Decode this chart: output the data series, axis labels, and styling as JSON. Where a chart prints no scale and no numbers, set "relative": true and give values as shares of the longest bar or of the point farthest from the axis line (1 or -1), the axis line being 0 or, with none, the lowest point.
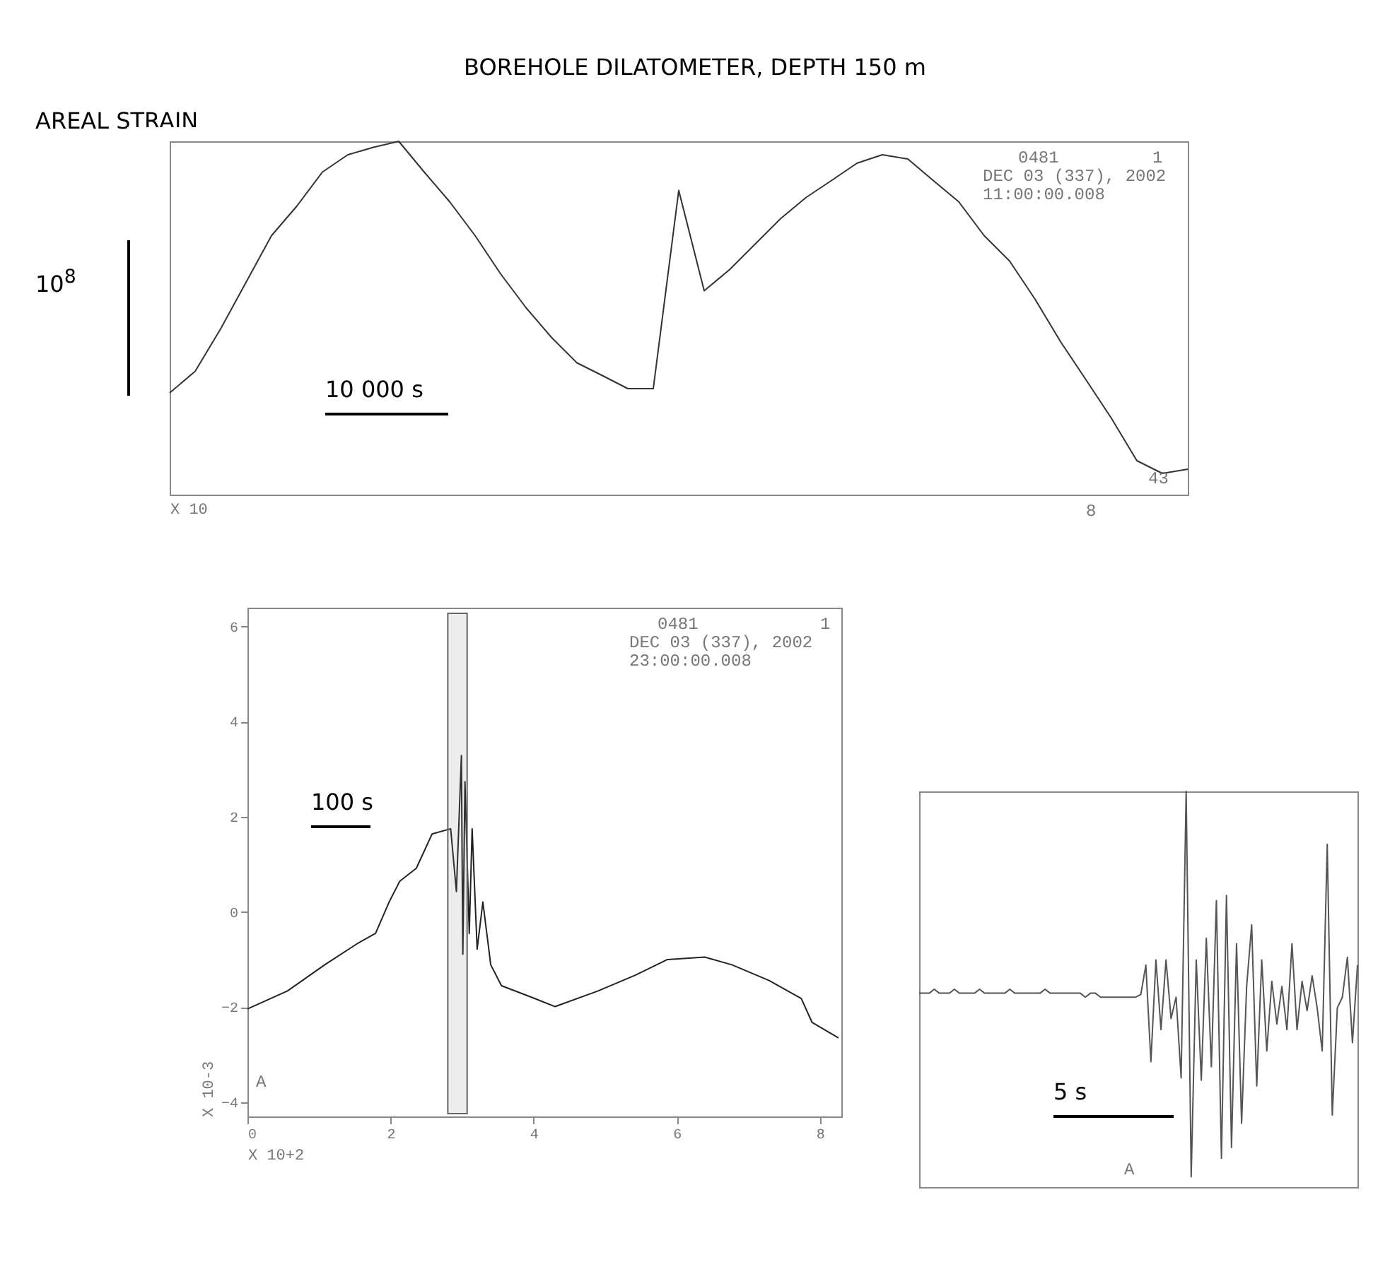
{
  "chart_data": [
    {
      "type": "line",
      "title": "BOREHOLE DILATOMETER, DEPTH 150 m",
      "subtitle": "AREAL STRAIN",
      "xlabel": "X 10",
      "relative": true,
      "categories": [
        null,
        null,
        null,
        null,
        null,
        null,
        null,
        null,
        null,
        null,
        null,
        null,
        null,
        null,
        null,
        null,
        null,
        null,
        null,
        null,
        null,
        null,
        null,
        null,
        null,
        null,
        null,
        null,
        null,
        null,
        null,
        null,
        null,
        null,
        null,
        null,
        null,
        null,
        null,
        null,
        null
      ],
      "series": [
        {
          "color": "#333333",
          "values": [
            0.288,
            0.349,
            0.469,
            0.601,
            0.733,
            0.817,
            0.913,
            0.962,
            0.983,
            1,
            0.913,
            0.829,
            0.733,
            0.625,
            0.529,
            0.445,
            0.373,
            0.337,
            0.3,
            0.3,
            0.861,
            0.577,
            0.637,
            0.709,
            0.781,
            0.841,
            0.889,
            0.938,
            0.962,
            0.95,
            0.889,
            0.829,
            0.733,
            0.661,
            0.553,
            0.433,
            0.325,
            0.216,
            0.096,
            0.06,
            0.072
          ]
        }
      ],
      "annotations": [
        "0481",
        "1",
        "DEC 03 (337), 2002",
        "11:00:00.008",
        "10 000 s",
        "10$^{8}$",
        "43",
        "8"
      ]
    },
    {
      "type": "line",
      "xlabel": "X 10+2",
      "ylabel": "X 10-3",
      "x": [
        0,
        0.56,
        1.08,
        1.53,
        1.79,
        1.98,
        2.13,
        2.36,
        2.58,
        2.84,
        2.92,
        2.99,
        3.01,
        3.04,
        3.1,
        3.14,
        3.21,
        3.29,
        3.4,
        3.55,
        3.93,
        4.3,
        4.9,
        5.42,
        5.87,
        6.39,
        6.77,
        7.29,
        7.74,
        7.89,
        8.26
      ],
      "series": [
        {
          "color": "#222222",
          "values": [
            -2.04,
            -1.66,
            -1.11,
            -0.67,
            -0.45,
            0.21,
            0.65,
            0.92,
            1.64,
            1.75,
            0.43,
            3.29,
            -0.89,
            2.74,
            -0.45,
            1.75,
            -0.78,
            0.21,
            -1.11,
            -1.55,
            -1.77,
            -1.99,
            -1.66,
            -1.33,
            -1,
            -0.95,
            -1.11,
            -1.44,
            -1.82,
            -2.32,
            -2.65
          ]
        }
      ],
      "xlim": [
        0,
        8.3
      ],
      "ylim": [
        -4.3,
        6.4
      ],
      "xticks": [
        0,
        2,
        4,
        6,
        8
      ],
      "yticks": [
        -4,
        -2,
        0,
        2,
        4,
        6
      ],
      "bands": [
        {
          "axis": "x",
          "from": 2.8,
          "to": 3.07
        }
      ],
      "annotations": [
        "0481",
        "1",
        "DEC 03 (337), 2002",
        "23:00:00.008",
        "100 s",
        "A"
      ]
    },
    {
      "type": "line",
      "relative": true,
      "categories": [
        null,
        null,
        null,
        null,
        null,
        null,
        null,
        null,
        null,
        null,
        null,
        null,
        null,
        null,
        null,
        null,
        null,
        null,
        null,
        null,
        null,
        null,
        null,
        null,
        null,
        null,
        null,
        null,
        null,
        null,
        null,
        null,
        null,
        null,
        null,
        null,
        null,
        null,
        null,
        null,
        null,
        null,
        null,
        null,
        null,
        null,
        null,
        null,
        null,
        null,
        null,
        null,
        null,
        null,
        null,
        null,
        null,
        null,
        null,
        null,
        null,
        null,
        null,
        null,
        null,
        null,
        null,
        null,
        null,
        null,
        null,
        null,
        null,
        null,
        null,
        null,
        null,
        null,
        null,
        null,
        null,
        null,
        null,
        null,
        null,
        null,
        null,
        null
      ],
      "series": [
        {
          "color": "#555555",
          "values": [
            0.49,
            0.49,
            0.49,
            0.5,
            0.49,
            0.49,
            0.49,
            0.5,
            0.49,
            0.49,
            0.49,
            0.49,
            0.5,
            0.49,
            0.49,
            0.49,
            0.49,
            0.49,
            0.5,
            0.49,
            0.49,
            0.49,
            0.49,
            0.49,
            0.49,
            0.5,
            0.49,
            0.49,
            0.49,
            0.49,
            0.49,
            0.49,
            0.49,
            0.48,
            0.49,
            0.49,
            0.48,
            0.48,
            0.48,
            0.48,
            0.48,
            0.48,
            0.48,
            0.48,
            0.487,
            0.561,
            0.317,
            0.574,
            0.398,
            0.574,
            0.426,
            0.48,
            0.276,
            1,
            0.026,
            0.574,
            0.27,
            0.629,
            0.304,
            0.724,
            0.073,
            0.737,
            0.1,
            0.615,
            0.161,
            0.507,
            0.663,
            0.256,
            0.574,
            0.344,
            0.52,
            0.412,
            0.507,
            0.398,
            0.615,
            0.398,
            0.52,
            0.446,
            0.534,
            0.453,
            0.344,
            0.866,
            0.182,
            0.453,
            0.48,
            0.581,
            0.365,
            0.561
          ]
        }
      ],
      "annotations": [
        "5 s",
        "A"
      ]
    }
  ]
}
